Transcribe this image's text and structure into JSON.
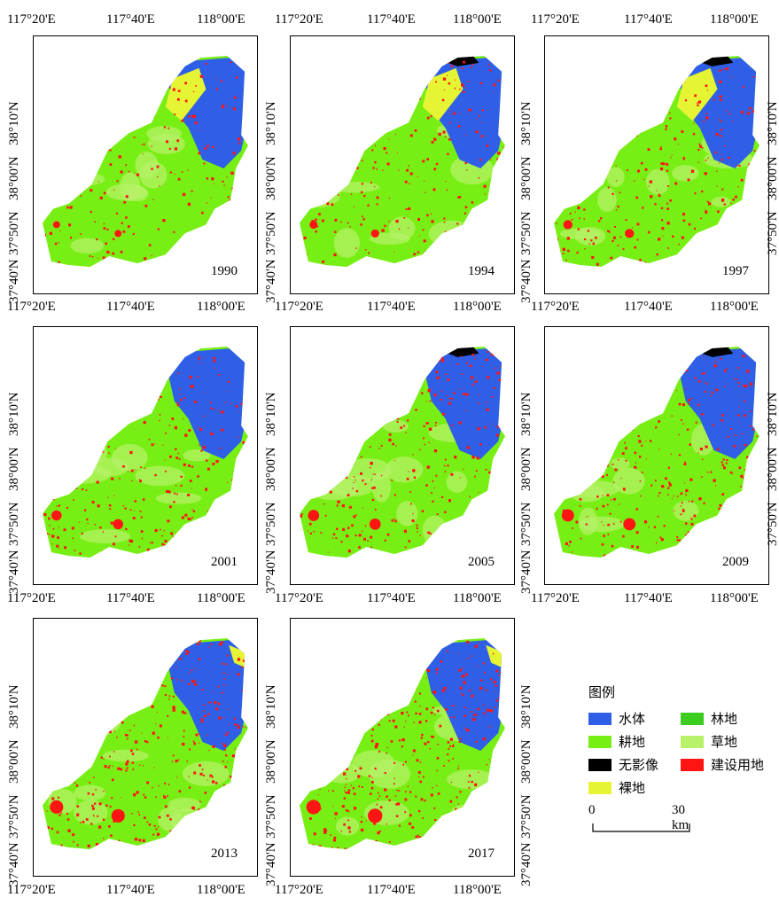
{
  "x_ticks": [
    "117°20'E",
    "117°40'E",
    "118°00'E"
  ],
  "y_ticks": [
    "38°10'N",
    "38°00'N",
    "37°50'N",
    "37°40'N"
  ],
  "panels": [
    {
      "year": "1990"
    },
    {
      "year": "1994"
    },
    {
      "year": "1997"
    },
    {
      "year": "2001"
    },
    {
      "year": "2005"
    },
    {
      "year": "2009"
    },
    {
      "year": "2013"
    },
    {
      "year": "2017"
    }
  ],
  "legend": {
    "title": "图例",
    "items": [
      {
        "label": "水体",
        "color": "#2f5fe6"
      },
      {
        "label": "林地",
        "color": "#3ccd1e"
      },
      {
        "label": "耕地",
        "color": "#78ef14"
      },
      {
        "label": "草地",
        "color": "#b8f26a"
      },
      {
        "label": "无影像",
        "color": "#000000"
      },
      {
        "label": "建设用地",
        "color": "#ff1414"
      },
      {
        "label": "裸地",
        "color": "#e6f533"
      }
    ]
  },
  "scale_bar": {
    "start": "0",
    "end": "30 km"
  }
}
